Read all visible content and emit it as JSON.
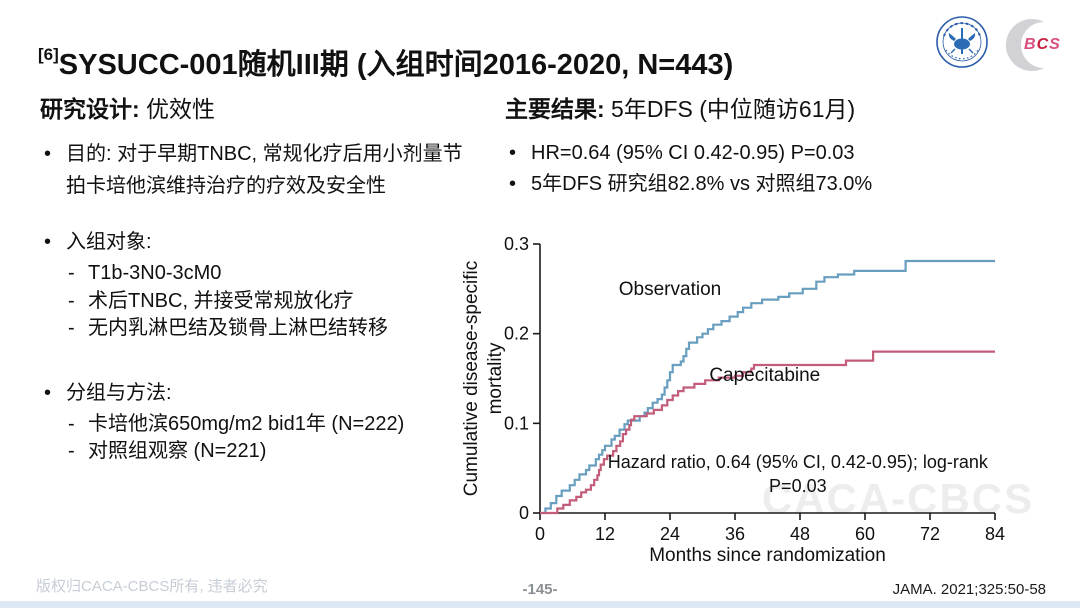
{
  "title": {
    "superscript": "[6]",
    "text": "SYSUCC-001随机III期 (入组时间2016-2020, N=443)"
  },
  "logos": {
    "bcs": "BCS"
  },
  "left_panel": {
    "heading_bold": "研究设计:",
    "heading_rest": " 优效性",
    "sections": [
      {
        "bullet": "目的: 对于早期TNBC, 常规化疗后用小剂量节拍卡培他滨维持治疗的疗效及安全性",
        "subs": []
      },
      {
        "bullet": "入组对象:",
        "subs": [
          "T1b-3N0-3cM0",
          "术后TNBC, 并接受常规放化疗",
          "无内乳淋巴结及锁骨上淋巴结转移"
        ]
      },
      {
        "bullet": "分组与方法:",
        "subs": [
          "卡培他滨650mg/m2 bid1年 (N=222)",
          "对照组观察 (N=221)"
        ]
      }
    ]
  },
  "right_panel": {
    "heading_bold": "主要结果:",
    "heading_rest": " 5年DFS (中位随访61月)",
    "bullets": [
      "HR=0.64 (95% CI 0.42-0.95) P=0.03",
      "5年DFS 研究组82.8% vs 对照组73.0%"
    ]
  },
  "footer": {
    "copyright": "版权归CACA-CBCS所有, 违者必究",
    "page": "-145-",
    "reference": "JAMA. 2021;325:50-58"
  },
  "chart_data": {
    "type": "line",
    "subtype": "step-after",
    "title": "",
    "xlabel": "Months since randomization",
    "ylabel": "Cumulative disease-specific mortality",
    "ylabel_lines": [
      "Cumulative disease-specific",
      "mortality"
    ],
    "xlim": [
      0,
      84
    ],
    "ylim": [
      0,
      0.3
    ],
    "xticks": [
      0,
      12,
      24,
      36,
      48,
      60,
      72,
      84
    ],
    "yticks": [
      0,
      0.1,
      0.2,
      0.3
    ],
    "ytick_labels": [
      "0",
      "0.1",
      "0.2",
      "0.3"
    ],
    "grid": false,
    "legend_position": "inline-labels",
    "axis_color": "#1a1a1a",
    "series": [
      {
        "name": "Observation",
        "color": "#689EBF",
        "label_pos": {
          "x": 24,
          "y": 0.243
        },
        "points": [
          [
            0,
            0
          ],
          [
            1,
            0.005
          ],
          [
            2,
            0.011
          ],
          [
            3,
            0.019
          ],
          [
            4,
            0.025
          ],
          [
            5.5,
            0.031
          ],
          [
            6.4,
            0.037
          ],
          [
            7.3,
            0.043
          ],
          [
            8.5,
            0.048
          ],
          [
            9.1,
            0.053
          ],
          [
            10.3,
            0.06
          ],
          [
            10.9,
            0.065
          ],
          [
            11.5,
            0.07
          ],
          [
            12,
            0.075
          ],
          [
            13.2,
            0.082
          ],
          [
            13.8,
            0.086
          ],
          [
            14.7,
            0.093
          ],
          [
            15.6,
            0.099
          ],
          [
            16.2,
            0.103
          ],
          [
            18.4,
            0.108
          ],
          [
            19.3,
            0.112
          ],
          [
            19.9,
            0.117
          ],
          [
            20.8,
            0.123
          ],
          [
            21.7,
            0.127
          ],
          [
            22.5,
            0.132
          ],
          [
            23,
            0.14
          ],
          [
            23.5,
            0.148
          ],
          [
            24,
            0.157
          ],
          [
            24.5,
            0.165
          ],
          [
            26,
            0.169
          ],
          [
            26.5,
            0.175
          ],
          [
            27,
            0.183
          ],
          [
            27.5,
            0.19
          ],
          [
            29,
            0.196
          ],
          [
            30,
            0.2
          ],
          [
            31,
            0.205
          ],
          [
            32,
            0.21
          ],
          [
            33.5,
            0.214
          ],
          [
            35,
            0.219
          ],
          [
            36.5,
            0.224
          ],
          [
            37.5,
            0.229
          ],
          [
            39,
            0.234
          ],
          [
            41,
            0.238
          ],
          [
            44,
            0.241
          ],
          [
            46,
            0.245
          ],
          [
            48.5,
            0.25
          ],
          [
            51,
            0.258
          ],
          [
            52.5,
            0.263
          ],
          [
            55,
            0.266
          ],
          [
            58,
            0.27
          ],
          [
            67.5,
            0.281
          ],
          [
            84,
            0.281
          ]
        ]
      },
      {
        "name": "Capecitabine",
        "color": "#C25C78",
        "label_pos": {
          "x": 41.5,
          "y": 0.147
        },
        "points": [
          [
            0,
            0
          ],
          [
            3.2,
            0.005
          ],
          [
            4.3,
            0.009
          ],
          [
            5.5,
            0.014
          ],
          [
            6.7,
            0.018
          ],
          [
            7.6,
            0.023
          ],
          [
            8.5,
            0.026
          ],
          [
            9.4,
            0.031
          ],
          [
            10,
            0.037
          ],
          [
            10.6,
            0.042
          ],
          [
            10.9,
            0.048
          ],
          [
            11.2,
            0.054
          ],
          [
            11.8,
            0.06
          ],
          [
            12.4,
            0.064
          ],
          [
            13.5,
            0.069
          ],
          [
            14.1,
            0.075
          ],
          [
            14.8,
            0.08
          ],
          [
            15.3,
            0.088
          ],
          [
            15.9,
            0.093
          ],
          [
            16.5,
            0.098
          ],
          [
            16.8,
            0.104
          ],
          [
            17.4,
            0.108
          ],
          [
            19.7,
            0.111
          ],
          [
            21,
            0.115
          ],
          [
            22.5,
            0.12
          ],
          [
            23.5,
            0.126
          ],
          [
            24.5,
            0.131
          ],
          [
            25.5,
            0.136
          ],
          [
            26.5,
            0.14
          ],
          [
            28.5,
            0.144
          ],
          [
            30.5,
            0.148
          ],
          [
            33,
            0.151
          ],
          [
            36,
            0.153
          ],
          [
            37.5,
            0.157
          ],
          [
            39,
            0.161
          ],
          [
            39.5,
            0.165
          ],
          [
            56.5,
            0.17
          ],
          [
            61.5,
            0.18
          ],
          [
            84,
            0.18
          ]
        ]
      }
    ],
    "annotation": [
      "Hazard ratio, 0.64 (95% CI, 0.42-0.95); log-rank",
      "P=0.03"
    ],
    "annotation_pos": {
      "x": 47.6,
      "y": 0.05
    },
    "watermark": "CACA-CBCS",
    "watermark_color": "#ededed"
  }
}
